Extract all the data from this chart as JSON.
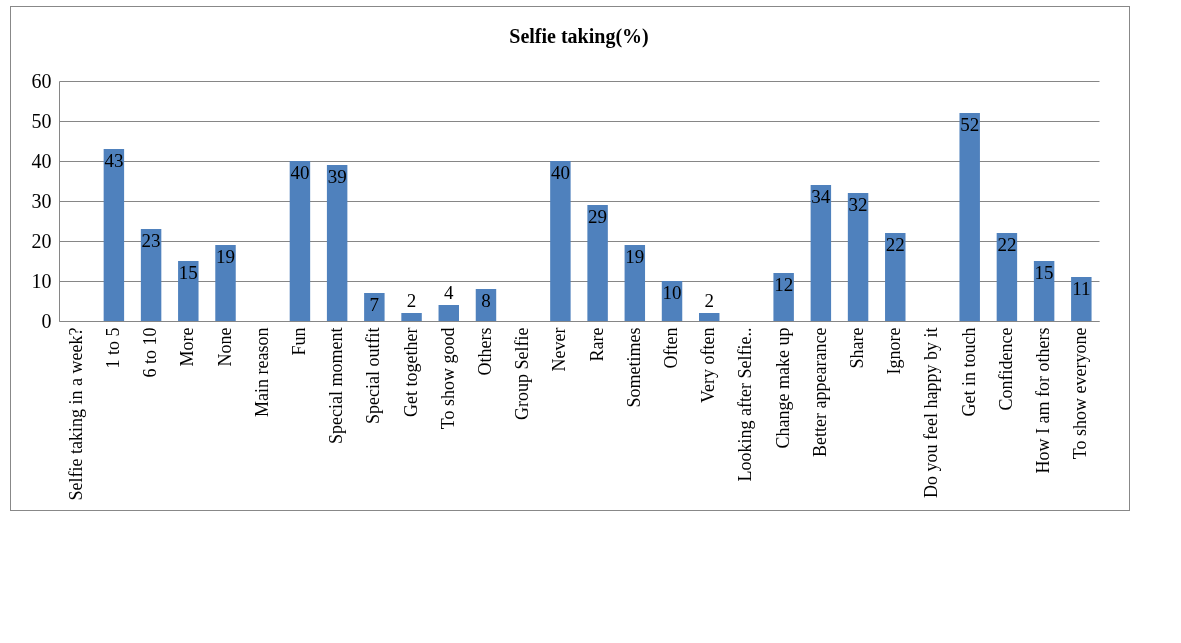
{
  "chart_data": {
    "type": "bar",
    "title": "Selfie taking(%)",
    "categories": [
      "Selfie taking in a week?",
      "1 to 5",
      "6 to 10",
      "More",
      "None",
      "Main reason",
      "Fun",
      "Special moment",
      "Special outfit",
      "Get together",
      "To show good",
      "Others",
      "Group Selfie",
      "Never",
      "Rare",
      "Sometimes",
      "Often",
      "Very often",
      "Looking after Selfie..",
      "Change make up",
      "Better appearance",
      "Share",
      "Ignore",
      "Do you feel happy by it",
      "Get in touch",
      "Confidence",
      "How I am for others",
      "To show everyone"
    ],
    "values": [
      null,
      43,
      23,
      15,
      19,
      null,
      40,
      39,
      7,
      2,
      4,
      8,
      null,
      40,
      29,
      19,
      10,
      2,
      null,
      12,
      34,
      32,
      22,
      null,
      52,
      22,
      15,
      11
    ],
    "color": "#4f81bd",
    "ylim": [
      0,
      60
    ],
    "yticks": [
      0,
      10,
      20,
      30,
      40,
      50,
      60
    ],
    "grid": "y",
    "data_labels": true
  }
}
